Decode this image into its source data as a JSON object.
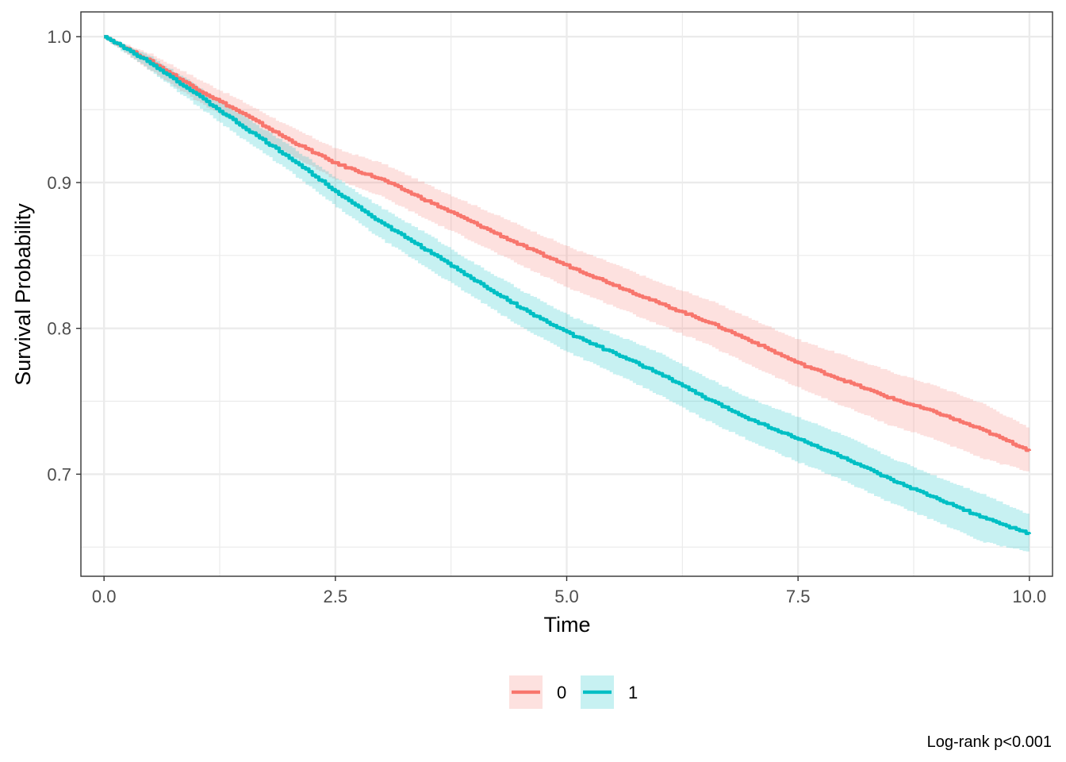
{
  "chart_data": {
    "type": "line",
    "subtype": "kaplan-meier survival curve with confidence bands",
    "xlabel": "Time",
    "ylabel": "Survival Probability",
    "xlim": [
      -0.25,
      10.25
    ],
    "ylim": [
      0.63,
      1.017
    ],
    "x_ticks": [
      0,
      2.5,
      5,
      7.5,
      10
    ],
    "x_tick_labels": [
      "0.0",
      "2.5",
      "5.0",
      "7.5",
      "10.0"
    ],
    "y_ticks": [
      0.7,
      0.8,
      0.9,
      1.0
    ],
    "y_tick_labels": [
      "0.7",
      "0.8",
      "0.9",
      "1.0"
    ],
    "grid": true,
    "legend_position": "bottom",
    "annotation": "Log-rank p<0.001",
    "series": [
      {
        "name": "0",
        "color": "#F8766D",
        "x": [
          0,
          0.5,
          1.0,
          1.5,
          2.0,
          2.5,
          3.0,
          3.5,
          4.0,
          4.5,
          5.0,
          5.5,
          6.0,
          6.5,
          7.0,
          7.5,
          8.0,
          8.5,
          9.0,
          9.5,
          10.0
        ],
        "y": [
          1.0,
          0.983,
          0.964,
          0.947,
          0.929,
          0.913,
          0.902,
          0.887,
          0.872,
          0.857,
          0.843,
          0.83,
          0.817,
          0.805,
          0.791,
          0.776,
          0.764,
          0.752,
          0.742,
          0.73,
          0.716
        ],
        "lower": [
          1.0,
          0.978,
          0.957,
          0.939,
          0.92,
          0.903,
          0.891,
          0.875,
          0.86,
          0.844,
          0.829,
          0.816,
          0.803,
          0.79,
          0.775,
          0.76,
          0.747,
          0.734,
          0.724,
          0.711,
          0.702
        ],
        "upper": [
          1.0,
          0.988,
          0.971,
          0.955,
          0.938,
          0.923,
          0.913,
          0.898,
          0.884,
          0.87,
          0.856,
          0.844,
          0.831,
          0.82,
          0.806,
          0.792,
          0.781,
          0.77,
          0.76,
          0.748,
          0.731
        ]
      },
      {
        "name": "1",
        "color": "#00BFC4",
        "x": [
          0,
          0.5,
          1.0,
          1.5,
          2.0,
          2.5,
          3.0,
          3.5,
          4.0,
          4.5,
          5.0,
          5.5,
          6.0,
          6.5,
          7.0,
          7.5,
          8.0,
          8.5,
          9.0,
          9.5,
          10.0
        ],
        "y": [
          1.0,
          0.982,
          0.96,
          0.938,
          0.917,
          0.894,
          0.872,
          0.853,
          0.833,
          0.814,
          0.797,
          0.783,
          0.769,
          0.752,
          0.737,
          0.724,
          0.711,
          0.696,
          0.683,
          0.67,
          0.659
        ],
        "lower": [
          1.0,
          0.978,
          0.954,
          0.931,
          0.909,
          0.885,
          0.862,
          0.842,
          0.822,
          0.802,
          0.785,
          0.77,
          0.755,
          0.738,
          0.723,
          0.709,
          0.696,
          0.681,
          0.668,
          0.654,
          0.647
        ],
        "upper": [
          1.0,
          0.986,
          0.966,
          0.945,
          0.925,
          0.903,
          0.882,
          0.864,
          0.844,
          0.826,
          0.809,
          0.796,
          0.783,
          0.766,
          0.751,
          0.739,
          0.726,
          0.711,
          0.698,
          0.686,
          0.672
        ]
      }
    ]
  }
}
